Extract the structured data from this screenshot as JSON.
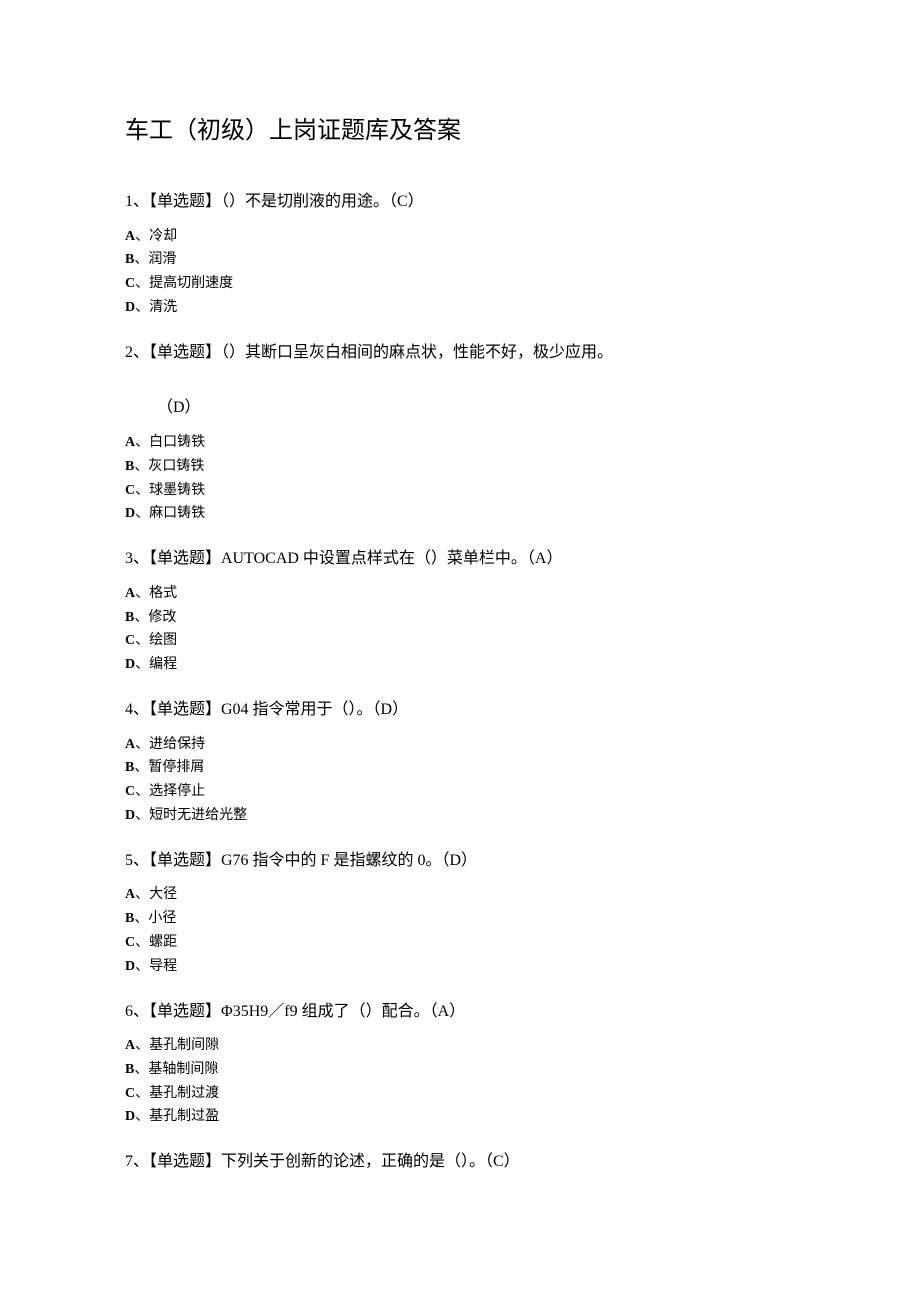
{
  "document": {
    "title": "车工（初级）上岗证题库及答案",
    "title_fontsize": 24,
    "question_fontsize": 16,
    "option_fontsize": 14,
    "text_color": "#000000",
    "background_color": "#ffffff",
    "font_family": "SimSun",
    "questions": [
      {
        "number": "1",
        "type": "【单选题】",
        "text": "（）不是切削液的用途。",
        "answer": "（C）",
        "options": [
          {
            "letter": "A",
            "text": "冷却"
          },
          {
            "letter": "B",
            "text": "润滑"
          },
          {
            "letter": "C",
            "text": "提高切削速度"
          },
          {
            "letter": "D",
            "text": "清洗"
          }
        ]
      },
      {
        "number": "2",
        "type": "【单选题】",
        "text": "（）其断口呈灰白相间的麻点状，性能不好，极少应用。",
        "answer": "（D）",
        "answer_newline": true,
        "options": [
          {
            "letter": "A",
            "text": "白口铸铁"
          },
          {
            "letter": "B",
            "text": "灰口铸铁"
          },
          {
            "letter": "C",
            "text": "球墨铸铁"
          },
          {
            "letter": "D",
            "text": "麻口铸铁"
          }
        ]
      },
      {
        "number": "3",
        "type": "【单选题】",
        "text": "AUTOCAD 中设置点样式在（）菜单栏中。",
        "answer": "（A）",
        "options": [
          {
            "letter": "A",
            "text": "格式"
          },
          {
            "letter": "B",
            "text": "修改"
          },
          {
            "letter": "C",
            "text": "绘图"
          },
          {
            "letter": "D",
            "text": "编程"
          }
        ]
      },
      {
        "number": "4",
        "type": "【单选题】",
        "text": "G04 指令常用于（）。",
        "answer": "（D）",
        "options": [
          {
            "letter": "A",
            "text": "进给保持"
          },
          {
            "letter": "B",
            "text": "暂停排屑"
          },
          {
            "letter": "C",
            "text": "选择停止"
          },
          {
            "letter": "D",
            "text": "短时无进给光整"
          }
        ]
      },
      {
        "number": "5",
        "type": "【单选题】",
        "text": "G76 指令中的 F 是指螺纹的 0。",
        "answer": "（D）",
        "options": [
          {
            "letter": "A",
            "text": "大径"
          },
          {
            "letter": "B",
            "text": "小径"
          },
          {
            "letter": "C",
            "text": "螺距"
          },
          {
            "letter": "D",
            "text": "导程"
          }
        ]
      },
      {
        "number": "6",
        "type": "【单选题】",
        "text": "Φ35H9／f9 组成了（）配合。",
        "answer": "（A）",
        "options": [
          {
            "letter": "A",
            "text": "基孔制间隙"
          },
          {
            "letter": "B",
            "text": "基轴制间隙"
          },
          {
            "letter": "C",
            "text": "基孔制过渡"
          },
          {
            "letter": "D",
            "text": "基孔制过盈"
          }
        ]
      },
      {
        "number": "7",
        "type": "【单选题】",
        "text": "下列关于创新的论述，正确的是（）。",
        "answer": "（C）",
        "options": []
      }
    ]
  }
}
